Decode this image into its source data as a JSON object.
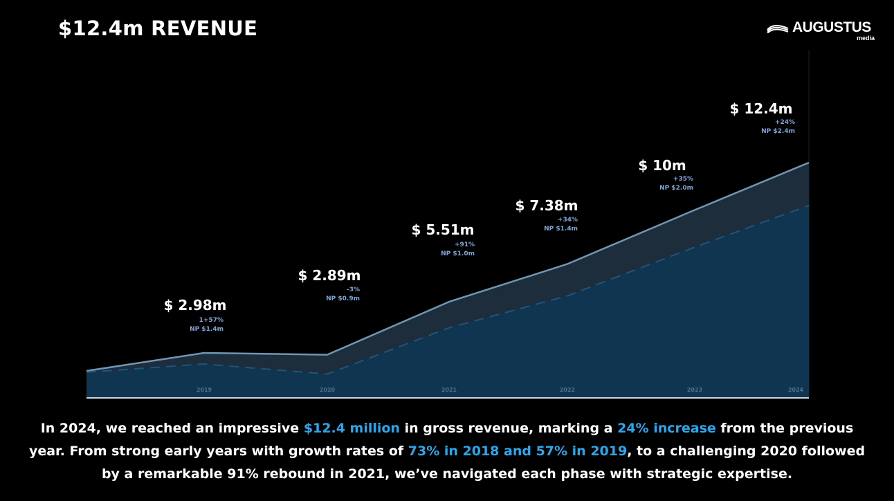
{
  "header": {
    "title": "$12.4m REVENUE",
    "logo_word": "AUGUSTUS",
    "logo_sub": "media",
    "logo_icon": "wave-lines-icon"
  },
  "colors": {
    "background": "#000000",
    "revenue_area": "#1e2d3c",
    "revenue_line": "#6f97b4",
    "profit_area": "#0f3550",
    "profit_line": "#1f5579",
    "label_text": "#ffffff",
    "sub_label_text": "#7fa6d8",
    "tick_text": "#4a7392",
    "highlight": "#29a8f0"
  },
  "chart_data": {
    "type": "area",
    "x": [
      "2019",
      "2020",
      "2021",
      "2022",
      "2023",
      "2024"
    ],
    "series": [
      {
        "values": [
          2.98,
          2.89,
          5.51,
          7.38,
          10,
          12.4
        ]
      },
      {
        "values": [
          1.4,
          0.9,
          1.0,
          1.4,
          2.0,
          2.4
        ]
      }
    ],
    "annotations": [
      {
        "x": "2019",
        "value": "$ 2.98m",
        "growth": "1+57%",
        "np": "NP $1.4m"
      },
      {
        "x": "2020",
        "value": "$ 2.89m",
        "growth": "-3%",
        "np": "NP $0.9m"
      },
      {
        "x": "2021",
        "value": "$ 5.51m",
        "growth": "+91%",
        "np": "NP $1.0m"
      },
      {
        "x": "2022",
        "value": "$ 7.38m",
        "growth": "+34%",
        "np": "NP $1.4m"
      },
      {
        "x": "2023",
        "value": "$ 10m",
        "growth": "+35%",
        "np": "NP $2.0m"
      },
      {
        "x": "2024",
        "value": "$ 12.4m",
        "growth": "+24%",
        "np": "NP $2.4m"
      }
    ],
    "grid": false,
    "legend": "none"
  },
  "caption": {
    "p1": "In 2024, we reached an impressive ",
    "h1": "$12.4 million",
    "p2": " in gross revenue, marking a ",
    "h2": "24% increase",
    "p3": " from the previous year. From strong early years with growth rates of ",
    "h3": "73% in 2018 and 57% in 2019",
    "p4": ", to a challenging 2020 followed by a remarkable 91% rebound in 2021, we’ve navigated each phase with strategic expertise."
  }
}
